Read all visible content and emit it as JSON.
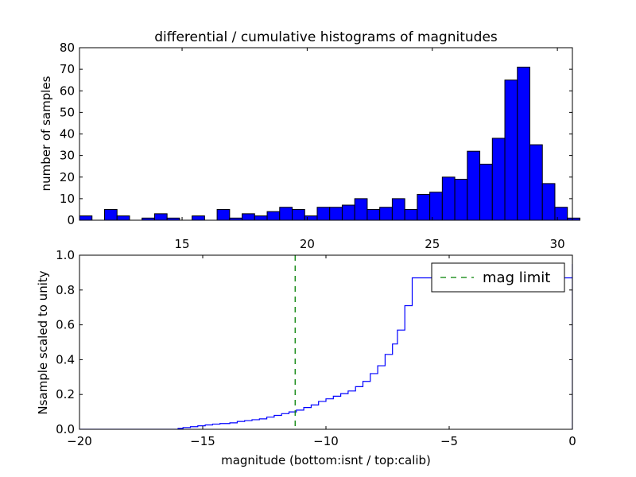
{
  "figure": {
    "title": "differential / cumulative histograms of magnitudes"
  },
  "chart_data": [
    {
      "type": "bar",
      "title": "differential / cumulative histograms of magnitudes",
      "xlabel": "",
      "ylabel": "number of samples",
      "xlim": [
        10.9,
        30.6
      ],
      "ylim": [
        0,
        80
      ],
      "xticks": [
        "15",
        "20",
        "25",
        "30"
      ],
      "yticks": [
        "0",
        "10",
        "20",
        "30",
        "40",
        "50",
        "60",
        "70",
        "80"
      ],
      "x_tick_position": "top",
      "bin_start": 10.9,
      "bin_width": 0.5,
      "values": [
        2,
        0,
        5,
        2,
        0,
        1,
        3,
        1,
        0,
        2,
        0,
        5,
        1,
        3,
        2,
        4,
        6,
        5,
        2,
        6,
        6,
        7,
        10,
        5,
        6,
        10,
        5,
        12,
        13,
        20,
        19,
        32,
        26,
        38,
        65,
        71,
        35,
        17,
        6,
        1
      ],
      "bar_color": "#0000ff"
    },
    {
      "type": "line",
      "step": true,
      "xlabel": "magnitude (bottom:isnt / top:calib)",
      "ylabel": "Nsample scaled to unity",
      "xlim": [
        -20,
        0
      ],
      "ylim": [
        0,
        1.0
      ],
      "xticks": [
        "−20",
        "−15",
        "−10",
        "−5",
        "0"
      ],
      "yticks": [
        "0.0",
        "0.2",
        "0.4",
        "0.6",
        "0.8",
        "1.0"
      ],
      "series": [
        {
          "color": "#0000ff",
          "x": [
            -20.0,
            -16.0,
            -15.8,
            -15.5,
            -15.2,
            -14.9,
            -14.6,
            -14.3,
            -13.9,
            -13.6,
            -13.3,
            -13.0,
            -12.7,
            -12.4,
            -12.1,
            -11.8,
            -11.5,
            -11.2,
            -10.9,
            -10.6,
            -10.3,
            -10.0,
            -9.7,
            -9.4,
            -9.1,
            -8.8,
            -8.5,
            -8.2,
            -7.9,
            -7.6,
            -7.3,
            -7.1,
            -6.8,
            -6.5,
            0.0
          ],
          "y": [
            0.0,
            0.005,
            0.01,
            0.015,
            0.02,
            0.025,
            0.03,
            0.033,
            0.037,
            0.045,
            0.05,
            0.055,
            0.06,
            0.07,
            0.08,
            0.09,
            0.1,
            0.11,
            0.125,
            0.14,
            0.16,
            0.175,
            0.19,
            0.205,
            0.22,
            0.245,
            0.275,
            0.32,
            0.365,
            0.43,
            0.49,
            0.57,
            0.71,
            0.87,
            0.95
          ]
        },
        {
          "name": "mag limit",
          "color": "#008000",
          "style": "dashed",
          "vline_x": -11.25
        }
      ],
      "legend": {
        "location": "top-right",
        "entries": [
          "mag limit"
        ]
      }
    }
  ]
}
